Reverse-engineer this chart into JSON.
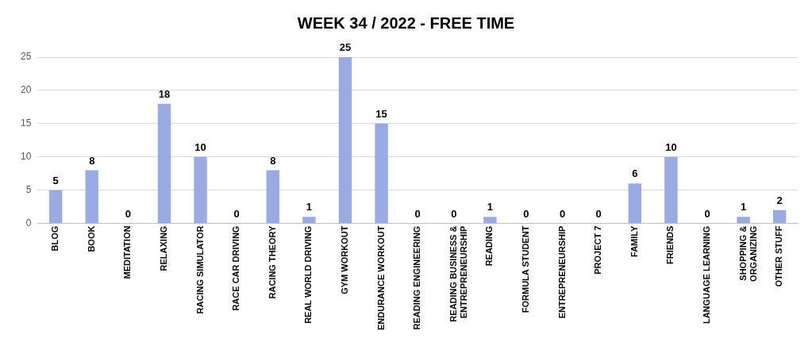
{
  "chart_data": {
    "type": "bar",
    "title": "WEEK 34 / 2022 - FREE TIME",
    "categories": [
      "BLOG",
      "BOOK",
      "MEDITATION",
      "RELAXING",
      "RACING SIMULATOR",
      "RACE CAR DRIVING",
      "RACING THEORY",
      "REAL WORLD DRIVING",
      "GYM WORKOUT",
      "ENDURANCE WORKOUT",
      "READING ENGINEERING",
      "READING BUSINESS & ENTREPRENEURSHIP",
      "READING",
      "FORMULA STUDENT",
      "ENTREPRENEURSHIP",
      "PROJECT 7",
      "FAMILY",
      "FRIENDS",
      "LANGUAGE LEARNING",
      "SHOPPING & ORGANIZING",
      "OTHER STUFF"
    ],
    "values": [
      5,
      8,
      0,
      18,
      10,
      0,
      8,
      1,
      25,
      15,
      0,
      0,
      1,
      0,
      0,
      0,
      6,
      10,
      0,
      1,
      2
    ],
    "color": "#9aaae2",
    "ylim": [
      0,
      25
    ],
    "yticks": [
      0,
      5,
      10,
      15,
      20,
      25
    ],
    "grid": "y",
    "legend": false,
    "data_labels": true
  }
}
